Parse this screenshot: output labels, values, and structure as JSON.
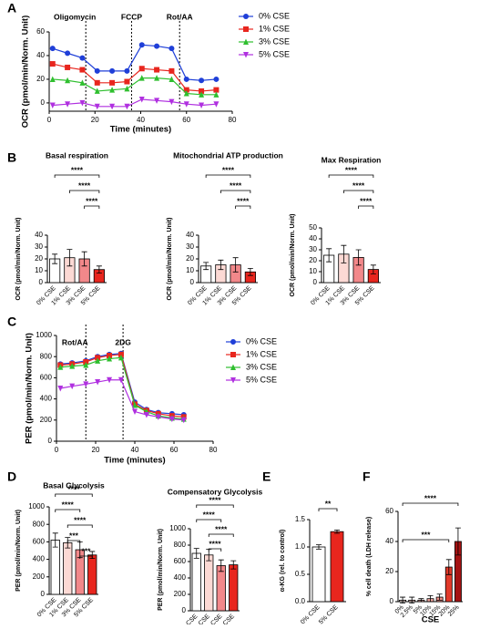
{
  "chart_data": [
    {
      "type": "line",
      "panel": "A",
      "xlabel": "Time (minutes)",
      "ylabel": "OCR (pmol/min/Norm. Unit)",
      "x": [
        1.5,
        8,
        14.5,
        21,
        27.5,
        34,
        40.5,
        47,
        53.5,
        60,
        66.5,
        73
      ],
      "series": [
        {
          "name": "0% CSE",
          "color": "#1f3fd8",
          "marker": "circle",
          "values": [
            46,
            42,
            38,
            27,
            27,
            27,
            49,
            48,
            46,
            20,
            19,
            20
          ]
        },
        {
          "name": "1% CSE",
          "color": "#e8261e",
          "marker": "square",
          "values": [
            33,
            30,
            28,
            17,
            17,
            18,
            29,
            28,
            27,
            11,
            10,
            11
          ]
        },
        {
          "name": "3% CSE",
          "color": "#2fbf2f",
          "marker": "triangle",
          "values": [
            20,
            19,
            17,
            10,
            11,
            12,
            21,
            21,
            20,
            8,
            7,
            7
          ]
        },
        {
          "name": "5% CSE",
          "color": "#b030e0",
          "marker": "triangle-down",
          "values": [
            -2,
            -1,
            0,
            -3,
            -3,
            -3,
            3,
            2,
            1,
            -1,
            -2,
            -1
          ]
        }
      ],
      "events": [
        {
          "label": "Oligomycin",
          "x": 16
        },
        {
          "label": "FCCP",
          "x": 36
        },
        {
          "label": "Rot/AA",
          "x": 57
        }
      ],
      "xlim": [
        0,
        80
      ],
      "xticks": [
        0,
        20,
        40,
        60,
        80
      ],
      "ylim": [
        -7,
        60
      ],
      "yticks": [
        0,
        20,
        40,
        60
      ]
    },
    {
      "type": "bar",
      "panel": "B",
      "title": "Basal respiration",
      "ylabel": "OCR (pmol/min/Norm. Unit)",
      "categories": [
        "0% CSE",
        "1% CSE",
        "3% CSE",
        "5% CSE"
      ],
      "values": [
        20,
        21,
        20,
        11
      ],
      "errors": [
        4,
        7,
        6,
        3
      ],
      "colors": [
        "#ffffff",
        "#fcd9d4",
        "#f2888a",
        "#e8261e"
      ],
      "ylim": [
        0,
        40
      ],
      "yticks": [
        0,
        10,
        20,
        30,
        40
      ],
      "brackets": [
        {
          "label": "****",
          "groups": [
            "3% CSE",
            "5% CSE"
          ]
        },
        {
          "label": "****",
          "groups": [
            "1% CSE",
            "5% CSE"
          ]
        },
        {
          "label": "****",
          "groups": [
            "0% CSE",
            "5% CSE"
          ]
        }
      ]
    },
    {
      "type": "bar",
      "title": "Mitochondrial ATP production",
      "ylabel": "OCR (pmol/min/Norm. Unit)",
      "categories": [
        "0% CSE",
        "1% CSE",
        "3% CSE",
        "5% CSE"
      ],
      "values": [
        14,
        15,
        15,
        9
      ],
      "errors": [
        3,
        4,
        6,
        3
      ],
      "colors": [
        "#ffffff",
        "#fcd9d4",
        "#f2888a",
        "#e8261e"
      ],
      "ylim": [
        0,
        40
      ],
      "yticks": [
        0,
        10,
        20,
        30,
        40
      ],
      "brackets": [
        {
          "label": "****",
          "groups": [
            "3% CSE",
            "5% CSE"
          ]
        },
        {
          "label": "****",
          "groups": [
            "1% CSE",
            "5% CSE"
          ]
        },
        {
          "label": "****",
          "groups": [
            "0% CSE",
            "5% CSE"
          ]
        }
      ]
    },
    {
      "type": "bar",
      "title": "Max Respiration",
      "ylabel": "OCR (pmol/min/Norm. Unit)",
      "categories": [
        "0% CSE",
        "1% CSE",
        "3% CSE",
        "5% CSE"
      ],
      "values": [
        25,
        26,
        23,
        12
      ],
      "errors": [
        6,
        8,
        7,
        4
      ],
      "colors": [
        "#ffffff",
        "#fcd9d4",
        "#f2888a",
        "#e8261e"
      ],
      "ylim": [
        0,
        50
      ],
      "yticks": [
        0,
        10,
        20,
        30,
        40,
        50
      ],
      "brackets": [
        {
          "label": "****",
          "groups": [
            "3% CSE",
            "5% CSE"
          ]
        },
        {
          "label": "****",
          "groups": [
            "1% CSE",
            "5% CSE"
          ]
        },
        {
          "label": "****",
          "groups": [
            "0% CSE",
            "5% CSE"
          ]
        }
      ]
    },
    {
      "type": "line",
      "panel": "C",
      "xlabel": "Time (minutes)",
      "ylabel": "PER (pmol/min/Norm. Unit)",
      "x": [
        2,
        8,
        15,
        21,
        27,
        33,
        40,
        46,
        52,
        59,
        65
      ],
      "series": [
        {
          "name": "0% CSE",
          "color": "#1f3fd8",
          "marker": "circle",
          "values": [
            730,
            740,
            760,
            800,
            820,
            830,
            370,
            300,
            270,
            260,
            250
          ]
        },
        {
          "name": "1% CSE",
          "color": "#e8261e",
          "marker": "square",
          "values": [
            720,
            730,
            750,
            790,
            810,
            820,
            350,
            290,
            260,
            240,
            230
          ]
        },
        {
          "name": "3% CSE",
          "color": "#2fbf2f",
          "marker": "triangle",
          "values": [
            700,
            710,
            720,
            760,
            780,
            790,
            340,
            280,
            240,
            220,
            210
          ]
        },
        {
          "name": "5% CSE",
          "color": "#b030e0",
          "marker": "triangle-down",
          "values": [
            500,
            520,
            540,
            560,
            580,
            580,
            280,
            250,
            230,
            210,
            200
          ]
        }
      ],
      "events": [
        {
          "label": "Rot/AA",
          "x": 15
        },
        {
          "label": "2DG",
          "x": 34
        }
      ],
      "xlim": [
        0,
        80
      ],
      "xticks": [
        0,
        20,
        40,
        60,
        80
      ],
      "ylim": [
        0,
        1000
      ],
      "yticks": [
        0,
        200,
        400,
        600,
        800,
        1000
      ]
    },
    {
      "type": "bar",
      "panel": "D",
      "title": "Basal Glycolysis",
      "ylabel": "PER (pmol/min/Norm. Unit)",
      "categories": [
        "0% CSE",
        "1% CSE",
        "3% CSE",
        "5% CSE"
      ],
      "values": [
        620,
        590,
        510,
        450
      ],
      "errors": [
        80,
        60,
        90,
        40
      ],
      "colors": [
        "#ffffff",
        "#fcd9d4",
        "#f2888a",
        "#e8261e"
      ],
      "ylim": [
        0,
        1000
      ],
      "yticks": [
        0,
        200,
        400,
        600,
        800,
        1000
      ],
      "brackets": [
        {
          "label": "***",
          "groups": [
            "3% CSE",
            "5% CSE"
          ]
        },
        {
          "label": "***",
          "groups": [
            "1% CSE",
            "3% CSE"
          ]
        },
        {
          "label": "****",
          "groups": [
            "1% CSE",
            "5% CSE"
          ]
        },
        {
          "label": "****",
          "groups": [
            "0% CSE",
            "3% CSE"
          ]
        },
        {
          "label": "****",
          "groups": [
            "0% CSE",
            "5% CSE"
          ]
        }
      ]
    },
    {
      "type": "bar",
      "title": "Compensatory Glycolysis",
      "ylabel": "PER (pmol/min/Norm. Unit)",
      "categories": [
        "0% CSE",
        "1% CSE",
        "3% CSE",
        "5% CSE"
      ],
      "values": [
        700,
        680,
        550,
        560
      ],
      "errors": [
        60,
        70,
        70,
        50
      ],
      "colors": [
        "#ffffff",
        "#fcd9d4",
        "#f2888a",
        "#e8261e"
      ],
      "ylim": [
        0,
        1000
      ],
      "yticks": [
        0,
        200,
        400,
        600,
        800,
        1000
      ],
      "brackets": [
        {
          "label": "****",
          "groups": [
            "1% CSE",
            "3% CSE"
          ]
        },
        {
          "label": "****",
          "groups": [
            "1% CSE",
            "5% CSE"
          ]
        },
        {
          "label": "****",
          "groups": [
            "0% CSE",
            "3% CSE"
          ]
        },
        {
          "label": "****",
          "groups": [
            "0% CSE",
            "5% CSE"
          ]
        }
      ]
    },
    {
      "type": "bar",
      "panel": "E",
      "ylabel": "α-KG (rel. to control)",
      "categories": [
        "0% CSE",
        "5% CSE"
      ],
      "values": [
        1.0,
        1.28
      ],
      "errors": [
        0.04,
        0.03
      ],
      "colors": [
        "#ffffff",
        "#e8261e"
      ],
      "ylim": [
        0,
        1.5
      ],
      "yticks": [
        {
          "value": 0,
          "label": "0.0"
        },
        {
          "value": 0.5,
          "label": "0.5"
        },
        {
          "value": 1,
          "label": "1.0"
        },
        {
          "value": 1.5,
          "label": "1.5"
        }
      ],
      "brackets": [
        {
          "label": "**",
          "groups": [
            "0% CSE",
            "5% CSE"
          ]
        }
      ]
    },
    {
      "type": "bar",
      "panel": "F",
      "ylabel": "% cell death (LDH release)",
      "xlabel": "CSE",
      "categories": [
        "0%",
        "2.5%",
        "5%",
        "10%",
        "15%",
        "20%",
        "25%"
      ],
      "values": [
        1,
        1,
        1,
        2,
        3,
        23,
        40
      ],
      "errors": [
        2,
        2,
        1,
        2,
        2,
        5,
        9
      ],
      "colors": [
        "#fde3e0",
        "#fbd0cb",
        "#f8bcb6",
        "#f5a8a0",
        "#f2928a",
        "#e23a2a",
        "#a51212"
      ],
      "ylim": [
        0,
        60
      ],
      "yticks": [
        0,
        20,
        40,
        60
      ],
      "brackets": [
        {
          "label": "***",
          "groups": [
            "0%",
            "20%"
          ]
        },
        {
          "label": "****",
          "groups": [
            "0%",
            "25%"
          ]
        }
      ]
    }
  ]
}
